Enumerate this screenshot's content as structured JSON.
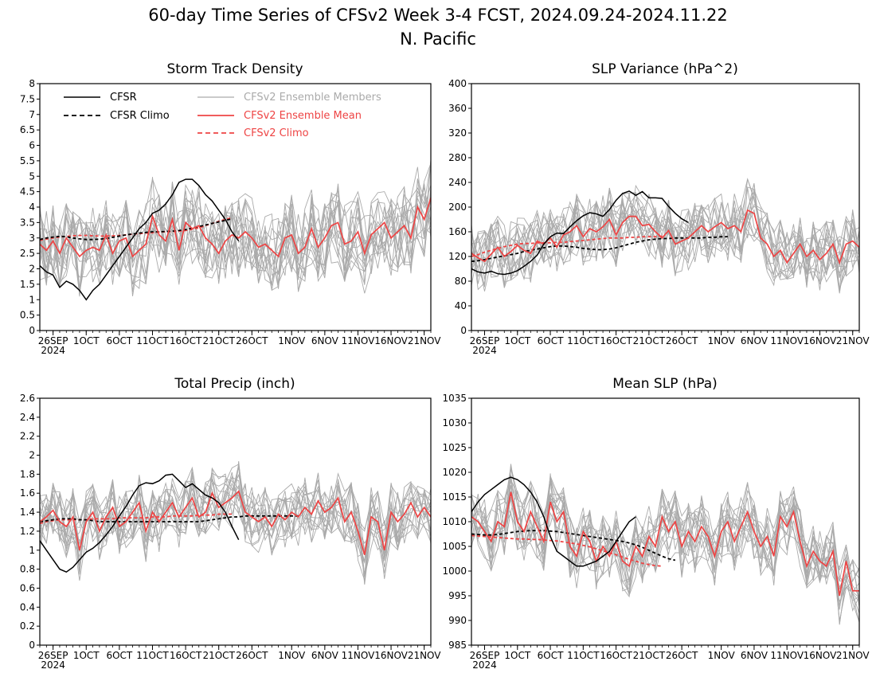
{
  "figure": {
    "title_line1": "60-day Time Series of CFSv2 Week 3-4 FCST, 2024.09.24-2024.11.22",
    "title_line2": "N. Pacific"
  },
  "legend": {
    "cfsr": "CFSR",
    "cfsr_climo": "CFSR Climo",
    "members": "CFSv2 Ensemble Members",
    "ens_mean": "CFSv2 Ensemble Mean",
    "cfsv2_climo": "CFSv2 Climo"
  },
  "colors": {
    "cfsr": "#000000",
    "members": "#aaaaaa",
    "ens_mean": "#ee4444",
    "cfsv2_climo": "#ee4444"
  },
  "x_axis": {
    "start_day": "2024-09-24",
    "n_days": 60,
    "year_label": "2024",
    "ticks": [
      {
        "day": 2,
        "label": "26SEP"
      },
      {
        "day": 7,
        "label": "1OCT"
      },
      {
        "day": 12,
        "label": "6OCT"
      },
      {
        "day": 17,
        "label": "11OCT"
      },
      {
        "day": 22,
        "label": "16OCT"
      },
      {
        "day": 27,
        "label": "21OCT"
      },
      {
        "day": 32,
        "label": "26OCT"
      },
      {
        "day": 38,
        "label": "1NOV"
      },
      {
        "day": 43,
        "label": "6NOV"
      },
      {
        "day": 48,
        "label": "11NOV"
      },
      {
        "day": 53,
        "label": "16NOV"
      },
      {
        "day": 58,
        "label": "21NOV"
      }
    ]
  },
  "chart_data": [
    {
      "type": "line",
      "title": "Storm Track Density",
      "ylim": [
        0,
        8
      ],
      "yticks": [
        "0",
        "0.5",
        "1",
        "1.5",
        "2",
        "2.5",
        "3",
        "3.5",
        "4",
        "4.5",
        "5",
        "5.5",
        "6",
        "6.5",
        "7",
        "7.5",
        "8"
      ],
      "legend": "top-left",
      "members_band": {
        "spread": 1.0
      },
      "series": [
        {
          "name": "CFSR",
          "role": "cfsr",
          "x_start": 0,
          "values": [
            2.1,
            1.9,
            1.8,
            1.4,
            1.6,
            1.5,
            1.3,
            1.0,
            1.3,
            1.5,
            1.8,
            2.1,
            2.4,
            2.7,
            3.0,
            3.3,
            3.5,
            3.8,
            3.9,
            4.1,
            4.4,
            4.8,
            4.9,
            4.9,
            4.7,
            4.4,
            4.2,
            3.9,
            3.6,
            3.2,
            2.9
          ]
        },
        {
          "name": "CFSR Climo",
          "role": "cfsr_climo",
          "x_start": 0,
          "values": [
            2.95,
            3.0,
            3.03,
            3.05,
            3.04,
            3.0,
            2.97,
            2.95,
            2.95,
            2.96,
            2.98,
            3.02,
            3.06,
            3.1,
            3.13,
            3.16,
            3.18,
            3.2,
            3.2,
            3.21,
            3.22,
            3.24,
            3.27,
            3.32,
            3.37,
            3.42,
            3.47,
            3.52,
            3.57,
            3.62
          ]
        },
        {
          "name": "CFSv2 Climo",
          "role": "cfsv2_climo",
          "x_start": 0,
          "values": [
            2.92,
            2.96,
            3.0,
            3.03,
            3.05,
            3.07,
            3.08,
            3.08,
            3.07,
            3.06,
            3.06,
            3.07,
            3.08,
            3.1,
            3.12,
            3.14,
            3.16,
            3.17,
            3.19,
            3.2,
            3.21,
            3.22,
            3.24,
            3.28,
            3.33,
            3.4,
            3.47,
            3.54,
            3.6,
            3.66
          ]
        },
        {
          "name": "CFSv2 Ensemble Mean",
          "role": "ens_mean",
          "x_start": 0,
          "values": [
            2.8,
            2.6,
            2.9,
            2.5,
            3.0,
            2.7,
            2.4,
            2.6,
            2.7,
            2.6,
            3.1,
            2.5,
            2.9,
            3.0,
            2.4,
            2.6,
            2.8,
            3.7,
            3.1,
            2.9,
            3.6,
            2.6,
            3.5,
            3.3,
            3.4,
            3.0,
            2.8,
            2.5,
            2.9,
            3.1,
            3.0,
            3.2,
            3.0,
            2.7,
            2.8,
            2.6,
            2.4,
            3.0,
            3.1,
            2.5,
            2.7,
            3.3,
            2.7,
            3.0,
            3.4,
            3.5,
            2.8,
            2.9,
            3.2,
            2.5,
            3.1,
            3.3,
            3.5,
            3.0,
            3.2,
            3.4,
            3.0,
            4.0,
            3.6,
            4.3
          ]
        }
      ]
    },
    {
      "type": "line",
      "title": "SLP Variance (hPa^2)",
      "ylim": [
        0,
        400
      ],
      "yticks": [
        "0",
        "40",
        "80",
        "120",
        "160",
        "200",
        "240",
        "280",
        "320",
        "360",
        "400"
      ],
      "members_band": {
        "spread": 40
      },
      "series": [
        {
          "name": "CFSR",
          "role": "cfsr",
          "x_start": 0,
          "values": [
            100,
            95,
            93,
            96,
            92,
            91,
            93,
            97,
            104,
            112,
            122,
            140,
            152,
            158,
            157,
            168,
            178,
            186,
            191,
            189,
            185,
            196,
            211,
            222,
            226,
            219,
            225,
            215,
            215,
            214,
            201,
            190,
            181,
            175
          ]
        },
        {
          "name": "CFSR Climo",
          "role": "cfsr_climo",
          "x_start": 0,
          "values": [
            112,
            113,
            115,
            117,
            119,
            121,
            123,
            125,
            128,
            130,
            132,
            134,
            136,
            137,
            137,
            136,
            135,
            133,
            132,
            131,
            131,
            132,
            134,
            137,
            140,
            143,
            145,
            147,
            148,
            149,
            149,
            150,
            150,
            150,
            150,
            150,
            151,
            151,
            152,
            152
          ]
        },
        {
          "name": "CFSv2 Climo",
          "role": "cfsv2_climo",
          "x_start": 0,
          "values": [
            120,
            123,
            127,
            130,
            133,
            136,
            138,
            140,
            141,
            141,
            142,
            142,
            142,
            143,
            143,
            144,
            145,
            146,
            147,
            148,
            149,
            150,
            150,
            150,
            151,
            151,
            152,
            152,
            152,
            153
          ]
        },
        {
          "name": "CFSv2 Ensemble Mean",
          "role": "ens_mean",
          "x_start": 0,
          "values": [
            125,
            118,
            112,
            124,
            135,
            120,
            128,
            138,
            130,
            125,
            145,
            140,
            150,
            135,
            155,
            160,
            170,
            152,
            165,
            160,
            168,
            180,
            155,
            175,
            185,
            185,
            170,
            172,
            160,
            150,
            162,
            140,
            145,
            150,
            160,
            170,
            160,
            168,
            175,
            165,
            170,
            160,
            195,
            190,
            150,
            140,
            120,
            130,
            110,
            125,
            140,
            120,
            130,
            115,
            125,
            140,
            110,
            140,
            145,
            135
          ]
        }
      ]
    },
    {
      "type": "line",
      "title": "Total Precip (inch)",
      "ylim": [
        0,
        2.6
      ],
      "yticks": [
        "0",
        "0.2",
        "0.4",
        "0.6",
        "0.8",
        "1",
        "1.2",
        "1.4",
        "1.6",
        "1.8",
        "2",
        "2.2",
        "2.4",
        "2.6"
      ],
      "members_band": {
        "spread": 0.25
      },
      "series": [
        {
          "name": "CFSR",
          "role": "cfsr",
          "x_start": 0,
          "values": [
            1.1,
            1.0,
            0.9,
            0.8,
            0.77,
            0.82,
            0.9,
            0.98,
            1.02,
            1.08,
            1.16,
            1.25,
            1.36,
            1.46,
            1.58,
            1.68,
            1.71,
            1.7,
            1.73,
            1.79,
            1.8,
            1.73,
            1.66,
            1.7,
            1.64,
            1.58,
            1.55,
            1.5,
            1.4,
            1.25,
            1.11
          ]
        },
        {
          "name": "CFSR Climo",
          "role": "cfsr_climo",
          "x_start": 0,
          "values": [
            1.3,
            1.31,
            1.32,
            1.33,
            1.33,
            1.33,
            1.32,
            1.32,
            1.31,
            1.3,
            1.3,
            1.3,
            1.3,
            1.3,
            1.3,
            1.3,
            1.3,
            1.3,
            1.3,
            1.3,
            1.3,
            1.3,
            1.3,
            1.3,
            1.3,
            1.31,
            1.32,
            1.33,
            1.34,
            1.35,
            1.35,
            1.36,
            1.36,
            1.36,
            1.36,
            1.36,
            1.36,
            1.36,
            1.36,
            1.36
          ]
        },
        {
          "name": "CFSv2 Climo",
          "role": "cfsv2_climo",
          "x_start": 0,
          "values": [
            1.28,
            1.3,
            1.31,
            1.32,
            1.32,
            1.32,
            1.32,
            1.32,
            1.33,
            1.33,
            1.33,
            1.33,
            1.34,
            1.34,
            1.34,
            1.34,
            1.34,
            1.35,
            1.35,
            1.35,
            1.36,
            1.36,
            1.36,
            1.36,
            1.37,
            1.37,
            1.37,
            1.38,
            1.38,
            1.38
          ]
        },
        {
          "name": "CFSv2 Ensemble Mean",
          "role": "ens_mean",
          "x_start": 0,
          "values": [
            1.3,
            1.35,
            1.42,
            1.3,
            1.25,
            1.35,
            1.0,
            1.3,
            1.4,
            1.2,
            1.35,
            1.45,
            1.25,
            1.3,
            1.4,
            1.5,
            1.2,
            1.4,
            1.3,
            1.4,
            1.5,
            1.35,
            1.45,
            1.55,
            1.35,
            1.4,
            1.6,
            1.45,
            1.5,
            1.55,
            1.62,
            1.4,
            1.35,
            1.3,
            1.35,
            1.25,
            1.38,
            1.32,
            1.4,
            1.35,
            1.45,
            1.38,
            1.52,
            1.4,
            1.45,
            1.55,
            1.3,
            1.4,
            1.2,
            0.95,
            1.35,
            1.3,
            1.0,
            1.4,
            1.3,
            1.38,
            1.5,
            1.35,
            1.45,
            1.35
          ]
        }
      ]
    },
    {
      "type": "line",
      "title": "Mean SLP (hPa)",
      "ylim": [
        985,
        1035
      ],
      "yticks": [
        "985",
        "990",
        "995",
        "1000",
        "1005",
        "1010",
        "1015",
        "1020",
        "1025",
        "1030",
        "1035"
      ],
      "members_band": {
        "spread": 5
      },
      "series": [
        {
          "name": "CFSR",
          "role": "cfsr",
          "x_start": 0,
          "values": [
            1012,
            1014,
            1015.5,
            1016.5,
            1017.5,
            1018.5,
            1019,
            1018.5,
            1017.5,
            1016,
            1014,
            1011,
            1007,
            1004,
            1003,
            1002,
            1001,
            1001,
            1001.5,
            1002,
            1003,
            1004,
            1006,
            1008,
            1010,
            1011
          ]
        },
        {
          "name": "CFSR Climo",
          "role": "cfsr_climo",
          "x_start": 0,
          "values": [
            1007.5,
            1007.4,
            1007.3,
            1007.3,
            1007.4,
            1007.6,
            1007.8,
            1008,
            1008.1,
            1008.2,
            1008.2,
            1008.2,
            1008.1,
            1008,
            1007.8,
            1007.6,
            1007.4,
            1007.2,
            1007,
            1006.8,
            1006.6,
            1006.4,
            1006.2,
            1006,
            1005.7,
            1005.3,
            1004.8,
            1004.2,
            1003.6,
            1003,
            1002.5,
            1002.2
          ]
        },
        {
          "name": "CFSv2 Climo",
          "role": "cfsv2_climo",
          "x_start": 0,
          "values": [
            1007.2,
            1007.1,
            1007,
            1006.9,
            1006.8,
            1006.7,
            1006.6,
            1006.5,
            1006.5,
            1006.4,
            1006.4,
            1006.3,
            1006.2,
            1006.1,
            1005.9,
            1005.7,
            1005.5,
            1005.2,
            1004.9,
            1004.5,
            1004.1,
            1003.7,
            1003.3,
            1002.8,
            1002.4,
            1002,
            1001.6,
            1001.3,
            1001.1,
            1001
          ]
        },
        {
          "name": "CFSv2 Ensemble Mean",
          "role": "ens_mean",
          "x_start": 0,
          "values": [
            1011,
            1010,
            1008,
            1006,
            1010,
            1009,
            1016,
            1010,
            1008,
            1012,
            1009,
            1006,
            1014,
            1010,
            1012,
            1005,
            1003,
            1008,
            1006,
            1002,
            1005,
            1003,
            1006,
            1002,
            1001,
            1005,
            1003,
            1007,
            1005,
            1011,
            1008,
            1010,
            1005,
            1008,
            1006,
            1009,
            1007,
            1003,
            1008,
            1010,
            1006,
            1009,
            1012,
            1008,
            1005,
            1007,
            1003,
            1011,
            1009,
            1012,
            1006,
            1001,
            1004,
            1002,
            1001,
            1004,
            995,
            1002,
            996,
            996
          ]
        }
      ]
    }
  ]
}
